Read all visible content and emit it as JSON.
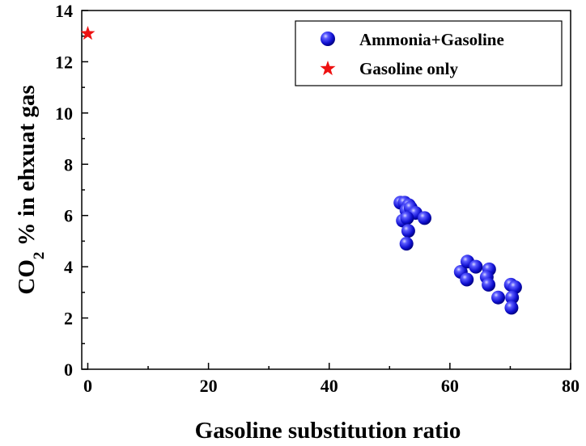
{
  "chart_data": {
    "type": "scatter",
    "xlabel": "Gasoline substitution ratio",
    "ylabel_main": "CO",
    "ylabel_sub": "2",
    "ylabel_rest": " % in ehxuat gas",
    "xlim": [
      -1,
      80
    ],
    "ylim": [
      0,
      14
    ],
    "xticks": [
      "0",
      "20",
      "40",
      "60",
      "80"
    ],
    "yticks": [
      "0",
      "2",
      "4",
      "6",
      "8",
      "10",
      "12",
      "14"
    ],
    "legend_position": "top-right",
    "series": [
      {
        "name": "Ammonia+Gasoline",
        "marker": "circle",
        "color": "#1a1ae6",
        "points": [
          [
            51.8,
            6.5
          ],
          [
            52.5,
            6.5
          ],
          [
            53.2,
            6.4
          ],
          [
            52.8,
            6.2
          ],
          [
            53.5,
            6.3
          ],
          [
            54.3,
            6.1
          ],
          [
            52.2,
            5.8
          ],
          [
            52.9,
            5.9
          ],
          [
            53.1,
            5.4
          ],
          [
            52.8,
            4.9
          ],
          [
            55.8,
            5.9
          ],
          [
            61.8,
            3.8
          ],
          [
            62.9,
            4.2
          ],
          [
            62.8,
            3.5
          ],
          [
            64.3,
            4.0
          ],
          [
            66.5,
            3.9
          ],
          [
            66.1,
            3.6
          ],
          [
            66.4,
            3.3
          ],
          [
            68.0,
            2.8
          ],
          [
            70.1,
            3.3
          ],
          [
            70.8,
            3.2
          ],
          [
            70.3,
            2.8
          ],
          [
            70.2,
            2.4
          ]
        ]
      },
      {
        "name": "Gasoline only",
        "marker": "star",
        "color": "#ee1111",
        "points": [
          [
            0,
            13.1
          ]
        ]
      }
    ]
  }
}
